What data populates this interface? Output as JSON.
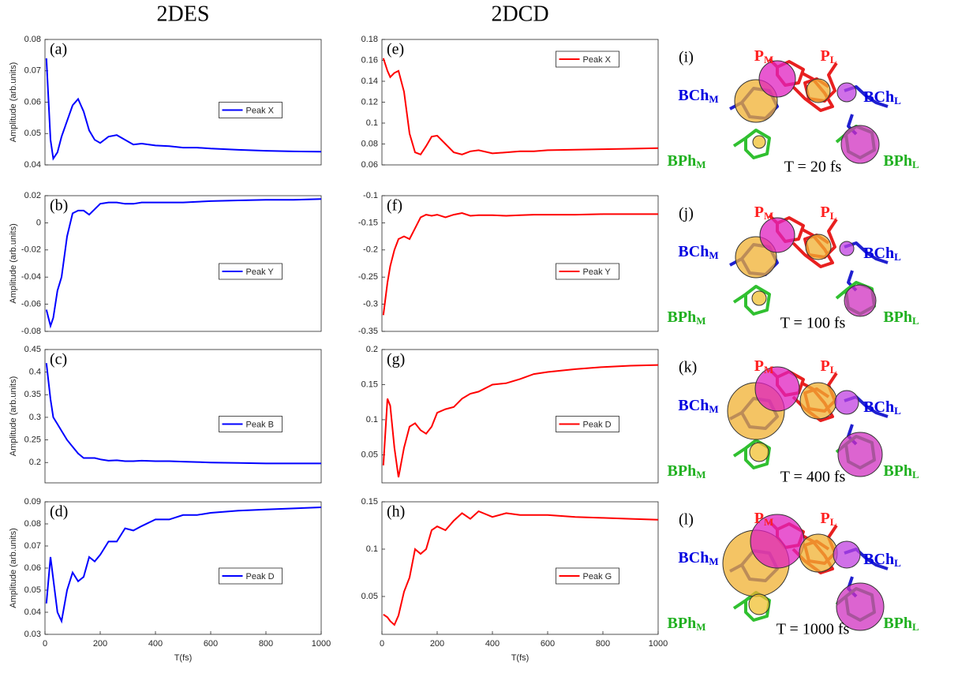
{
  "headers": [
    "2DES",
    "2DCD"
  ],
  "chart_data": [
    {
      "type": "line",
      "panel": "(a)",
      "ylabel": "Amplitude (arb.units)",
      "legend": "right",
      "ylim": [
        0.04,
        0.08
      ],
      "yticks": [
        0.04,
        0.05,
        0.06,
        0.07,
        0.08
      ],
      "xlim": [
        0,
        1000
      ],
      "x": [
        5,
        20,
        30,
        45,
        60,
        80,
        100,
        120,
        140,
        160,
        180,
        200,
        230,
        260,
        290,
        320,
        350,
        400,
        450,
        500,
        550,
        600,
        700,
        800,
        900,
        1000
      ],
      "series": [
        {
          "name": "Peak X",
          "color": "#0000ff",
          "values": [
            0.074,
            0.048,
            0.042,
            0.044,
            0.049,
            0.054,
            0.059,
            0.061,
            0.057,
            0.051,
            0.048,
            0.047,
            0.049,
            0.0495,
            0.048,
            0.0465,
            0.0468,
            0.0462,
            0.046,
            0.0455,
            0.0455,
            0.0452,
            0.0448,
            0.0445,
            0.0443,
            0.0442
          ]
        }
      ]
    },
    {
      "type": "line",
      "panel": "(b)",
      "ylabel": "Amplitude (arb.units)",
      "legend": "right",
      "ylim": [
        -0.08,
        0.02
      ],
      "yticks": [
        -0.08,
        -0.06,
        -0.04,
        -0.02,
        0,
        0.02
      ],
      "xlim": [
        0,
        1000
      ],
      "x": [
        5,
        20,
        30,
        45,
        60,
        80,
        100,
        120,
        140,
        160,
        180,
        200,
        230,
        260,
        290,
        320,
        350,
        400,
        450,
        500,
        550,
        600,
        700,
        800,
        900,
        1000
      ],
      "series": [
        {
          "name": "Peak Y",
          "color": "#0000ff",
          "values": [
            -0.064,
            -0.076,
            -0.07,
            -0.05,
            -0.04,
            -0.01,
            0.007,
            0.009,
            0.009,
            0.006,
            0.01,
            0.014,
            0.015,
            0.015,
            0.014,
            0.014,
            0.015,
            0.015,
            0.015,
            0.015,
            0.0155,
            0.016,
            0.0165,
            0.017,
            0.017,
            0.0175
          ]
        }
      ]
    },
    {
      "type": "line",
      "panel": "(c)",
      "ylabel": "Amplitude (arb.units)",
      "legend": "right",
      "ylim": [
        0.155,
        0.45
      ],
      "yticks": [
        0.2,
        0.25,
        0.3,
        0.35,
        0.4,
        0.45
      ],
      "xlim": [
        0,
        1000
      ],
      "x": [
        5,
        20,
        30,
        45,
        60,
        80,
        100,
        120,
        140,
        160,
        180,
        200,
        230,
        260,
        290,
        320,
        350,
        400,
        450,
        500,
        550,
        600,
        700,
        800,
        900,
        1000
      ],
      "series": [
        {
          "name": "Peak B",
          "color": "#0000ff",
          "values": [
            0.42,
            0.34,
            0.3,
            0.285,
            0.27,
            0.25,
            0.235,
            0.22,
            0.21,
            0.21,
            0.21,
            0.207,
            0.204,
            0.205,
            0.203,
            0.203,
            0.204,
            0.203,
            0.203,
            0.202,
            0.201,
            0.2,
            0.199,
            0.198,
            0.198,
            0.198
          ]
        }
      ]
    },
    {
      "type": "line",
      "panel": "(d)",
      "ylabel": "Amplitude (arb.units)",
      "xlabel": "T(fs)",
      "legend": "right",
      "ylim": [
        0.03,
        0.09
      ],
      "yticks": [
        0.03,
        0.04,
        0.05,
        0.06,
        0.07,
        0.08,
        0.09
      ],
      "xlim": [
        0,
        1000
      ],
      "xticks": [
        0,
        200,
        400,
        600,
        800,
        1000
      ],
      "x": [
        5,
        20,
        30,
        45,
        60,
        80,
        100,
        120,
        140,
        160,
        180,
        200,
        230,
        260,
        290,
        320,
        350,
        400,
        450,
        500,
        550,
        600,
        700,
        800,
        900,
        1000
      ],
      "series": [
        {
          "name": "Peak D",
          "color": "#0000ff",
          "values": [
            0.044,
            0.065,
            0.055,
            0.04,
            0.036,
            0.05,
            0.058,
            0.054,
            0.056,
            0.065,
            0.063,
            0.066,
            0.072,
            0.072,
            0.078,
            0.077,
            0.079,
            0.082,
            0.082,
            0.084,
            0.084,
            0.085,
            0.086,
            0.0865,
            0.087,
            0.0875
          ]
        }
      ]
    },
    {
      "type": "line",
      "panel": "(e)",
      "legend": "upper right",
      "ylim": [
        0.06,
        0.18
      ],
      "yticks": [
        0.06,
        0.08,
        0.1,
        0.12,
        0.14,
        0.16,
        0.18
      ],
      "xlim": [
        0,
        1000
      ],
      "x": [
        5,
        20,
        30,
        45,
        60,
        80,
        100,
        120,
        140,
        160,
        180,
        200,
        230,
        260,
        290,
        320,
        350,
        400,
        450,
        500,
        550,
        600,
        700,
        800,
        900,
        1000
      ],
      "series": [
        {
          "name": "Peak X",
          "color": "#ff0000",
          "values": [
            0.162,
            0.15,
            0.144,
            0.148,
            0.15,
            0.13,
            0.09,
            0.072,
            0.07,
            0.078,
            0.087,
            0.088,
            0.08,
            0.072,
            0.07,
            0.073,
            0.074,
            0.071,
            0.072,
            0.073,
            0.073,
            0.074,
            0.0745,
            0.075,
            0.0755,
            0.076
          ]
        }
      ]
    },
    {
      "type": "line",
      "panel": "(f)",
      "legend": "right",
      "ylim": [
        -0.35,
        -0.1
      ],
      "yticks": [
        -0.35,
        -0.3,
        -0.25,
        -0.2,
        -0.15,
        -0.1
      ],
      "xlim": [
        0,
        1000
      ],
      "x": [
        5,
        20,
        30,
        45,
        60,
        80,
        100,
        120,
        140,
        160,
        180,
        200,
        230,
        260,
        290,
        320,
        350,
        400,
        450,
        500,
        550,
        600,
        700,
        800,
        900,
        1000
      ],
      "series": [
        {
          "name": "Peak Y",
          "color": "#ff0000",
          "values": [
            -0.32,
            -0.26,
            -0.23,
            -0.2,
            -0.18,
            -0.175,
            -0.18,
            -0.16,
            -0.14,
            -0.135,
            -0.137,
            -0.135,
            -0.14,
            -0.135,
            -0.132,
            -0.137,
            -0.136,
            -0.136,
            -0.137,
            -0.136,
            -0.135,
            -0.135,
            -0.135,
            -0.134,
            -0.134,
            -0.134
          ]
        }
      ]
    },
    {
      "type": "line",
      "panel": "(g)",
      "legend": "right",
      "ylim": [
        0.01,
        0.2
      ],
      "yticks": [
        0.05,
        0.1,
        0.15,
        0.2
      ],
      "xlim": [
        0,
        1000
      ],
      "x": [
        5,
        20,
        30,
        45,
        60,
        80,
        100,
        120,
        140,
        160,
        180,
        200,
        230,
        260,
        290,
        320,
        350,
        400,
        450,
        500,
        550,
        600,
        700,
        800,
        900,
        1000
      ],
      "series": [
        {
          "name": "Peak D",
          "color": "#ff0000",
          "values": [
            0.035,
            0.13,
            0.12,
            0.06,
            0.018,
            0.06,
            0.09,
            0.095,
            0.085,
            0.08,
            0.09,
            0.11,
            0.115,
            0.118,
            0.13,
            0.137,
            0.14,
            0.15,
            0.152,
            0.158,
            0.165,
            0.168,
            0.172,
            0.175,
            0.177,
            0.178
          ]
        }
      ]
    },
    {
      "type": "line",
      "panel": "(h)",
      "xlabel": "T(fs)",
      "legend": "right",
      "ylim": [
        0.01,
        0.15
      ],
      "yticks": [
        0.05,
        0.1,
        0.15
      ],
      "xlim": [
        0,
        1000
      ],
      "xticks": [
        0,
        200,
        400,
        600,
        800,
        1000
      ],
      "x": [
        5,
        20,
        30,
        45,
        60,
        80,
        100,
        120,
        140,
        160,
        180,
        200,
        230,
        260,
        290,
        320,
        350,
        400,
        450,
        500,
        550,
        600,
        700,
        800,
        900,
        1000
      ],
      "series": [
        {
          "name": "Peak G",
          "color": "#ff0000",
          "values": [
            0.031,
            0.028,
            0.024,
            0.02,
            0.03,
            0.055,
            0.07,
            0.1,
            0.095,
            0.1,
            0.12,
            0.124,
            0.12,
            0.13,
            0.138,
            0.132,
            0.14,
            0.134,
            0.138,
            0.136,
            0.136,
            0.136,
            0.134,
            0.133,
            0.132,
            0.131
          ]
        }
      ]
    }
  ],
  "diagrams": [
    {
      "panel": "(i)",
      "caption": "T = 20 fs",
      "labels": [
        {
          "text": "P",
          "sub": "M",
          "color": "#ff2020"
        },
        {
          "text": "P",
          "sub": "L",
          "color": "#ff2020"
        },
        {
          "text": "BCh",
          "sub": "M",
          "color": "#0000e0"
        },
        {
          "text": "BCh",
          "sub": "L",
          "color": "#0000e0"
        },
        {
          "text": "BPh",
          "sub": "M",
          "color": "#20b020"
        },
        {
          "text": "BPh",
          "sub": "L",
          "color": "#20b020"
        }
      ]
    },
    {
      "panel": "(j)",
      "caption": "T = 100 fs",
      "labels": [
        {
          "text": "P",
          "sub": "M",
          "color": "#ff2020"
        },
        {
          "text": "P",
          "sub": "L",
          "color": "#ff2020"
        },
        {
          "text": "BCh",
          "sub": "M",
          "color": "#0000e0"
        },
        {
          "text": "BCh",
          "sub": "L",
          "color": "#0000e0"
        },
        {
          "text": "BPh",
          "sub": "M",
          "color": "#20b020"
        },
        {
          "text": "BPh",
          "sub": "L",
          "color": "#20b020"
        }
      ]
    },
    {
      "panel": "(k)",
      "caption": "T = 400 fs",
      "labels": [
        {
          "text": "P",
          "sub": "M",
          "color": "#ff2020"
        },
        {
          "text": "P",
          "sub": "L",
          "color": "#ff2020"
        },
        {
          "text": "BCh",
          "sub": "M",
          "color": "#0000e0"
        },
        {
          "text": "BCh",
          "sub": "L",
          "color": "#0000e0"
        },
        {
          "text": "BPh",
          "sub": "M",
          "color": "#20b020"
        },
        {
          "text": "BPh",
          "sub": "L",
          "color": "#20b020"
        }
      ]
    },
    {
      "panel": "(l)",
      "caption": "T = 1000 fs",
      "labels": [
        {
          "text": "P",
          "sub": "M",
          "color": "#ff2020"
        },
        {
          "text": "P",
          "sub": "L",
          "color": "#ff2020"
        },
        {
          "text": "BCh",
          "sub": "M",
          "color": "#0000e0"
        },
        {
          "text": "BCh",
          "sub": "L",
          "color": "#0000e0"
        },
        {
          "text": "BPh",
          "sub": "M",
          "color": "#20b020"
        },
        {
          "text": "BPh",
          "sub": "L",
          "color": "#20b020"
        }
      ]
    }
  ]
}
